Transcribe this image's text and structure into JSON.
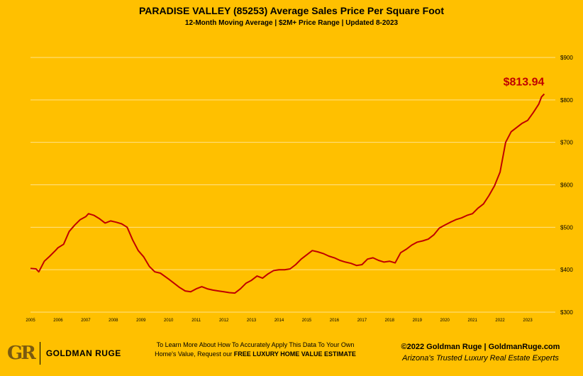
{
  "chart_data": {
    "type": "line",
    "title": "PARADISE VALLEY (85253) Average Sales Price Per Square Foot",
    "subtitle": "12-Month Moving Average | $2M+ Price Range | Updated 8-2023",
    "xlabel": "",
    "ylabel": "",
    "ylim": [
      300,
      900
    ],
    "xlim": [
      2005.0,
      2024.0
    ],
    "y_ticks": [
      "$900",
      "$800",
      "$700",
      "$600",
      "$500",
      "$400",
      "$300"
    ],
    "x_ticks": [
      "2005",
      "2006",
      "2007",
      "2008",
      "2009",
      "2010",
      "2011",
      "2012",
      "2013",
      "2014",
      "2015",
      "2016",
      "2017",
      "2018",
      "2019",
      "2020",
      "2021",
      "2022",
      "2023"
    ],
    "grid": "horizontal",
    "line_color": "#C00000",
    "annotation": "$813.94",
    "series": [
      {
        "x": [
          2005.0,
          2005.2,
          2005.3,
          2005.5,
          2005.7,
          2005.9,
          2006.0,
          2006.2,
          2006.4,
          2006.6,
          2006.8,
          2007.0,
          2007.1,
          2007.3,
          2007.5,
          2007.7,
          2007.9,
          2008.1,
          2008.3,
          2008.5,
          2008.7,
          2008.9,
          2009.1,
          2009.3,
          2009.5,
          2009.7,
          2010.0,
          2010.2,
          2010.4,
          2010.6,
          2010.8,
          2011.0,
          2011.2,
          2011.4,
          2011.6,
          2011.8,
          2012.0,
          2012.2,
          2012.4,
          2012.6,
          2012.8,
          2013.0,
          2013.2,
          2013.4,
          2013.6,
          2013.8,
          2014.0,
          2014.2,
          2014.4,
          2014.6,
          2014.8,
          2015.0,
          2015.2,
          2015.4,
          2015.6,
          2015.8,
          2016.0,
          2016.2,
          2016.4,
          2016.6,
          2016.8,
          2017.0,
          2017.2,
          2017.4,
          2017.6,
          2017.8,
          2018.0,
          2018.2,
          2018.4,
          2018.6,
          2018.8,
          2019.0,
          2019.2,
          2019.4,
          2019.6,
          2019.8,
          2020.0,
          2020.2,
          2020.4,
          2020.6,
          2020.8,
          2021.0,
          2021.2,
          2021.4,
          2021.6,
          2021.8,
          2022.0,
          2022.2,
          2022.4,
          2022.6,
          2022.8,
          2023.0,
          2023.2,
          2023.4,
          2023.5,
          2023.6
        ],
        "y": [
          403,
          402,
          395,
          420,
          432,
          445,
          452,
          460,
          490,
          505,
          518,
          525,
          532,
          528,
          520,
          510,
          515,
          512,
          508,
          500,
          470,
          445,
          430,
          408,
          395,
          392,
          378,
          368,
          358,
          350,
          348,
          355,
          360,
          355,
          352,
          350,
          348,
          346,
          345,
          355,
          368,
          375,
          385,
          380,
          390,
          398,
          400,
          400,
          402,
          412,
          425,
          435,
          445,
          442,
          438,
          432,
          428,
          422,
          418,
          415,
          410,
          412,
          425,
          428,
          422,
          418,
          420,
          416,
          440,
          448,
          458,
          465,
          468,
          472,
          482,
          498,
          505,
          512,
          518,
          522,
          528,
          532,
          545,
          555,
          575,
          598,
          630,
          700,
          725,
          735,
          745,
          752,
          770,
          790,
          807,
          813.94
        ]
      }
    ]
  },
  "footer": {
    "logo_mark": "GR",
    "logo_name": "GOLDMAN RUGE",
    "cta_line1": "To Learn More About How To Accurately Apply This Data To Your Own",
    "cta_line2_prefix": "Home's Value, Request our ",
    "cta_line2_bold": "FREE LUXURY HOME VALUE ESTIMATE",
    "copyright": "©2022 Goldman Ruge  |  GoldmanRuge.com",
    "tagline": "Arizona's Trusted Luxury Real Estate Experts"
  }
}
